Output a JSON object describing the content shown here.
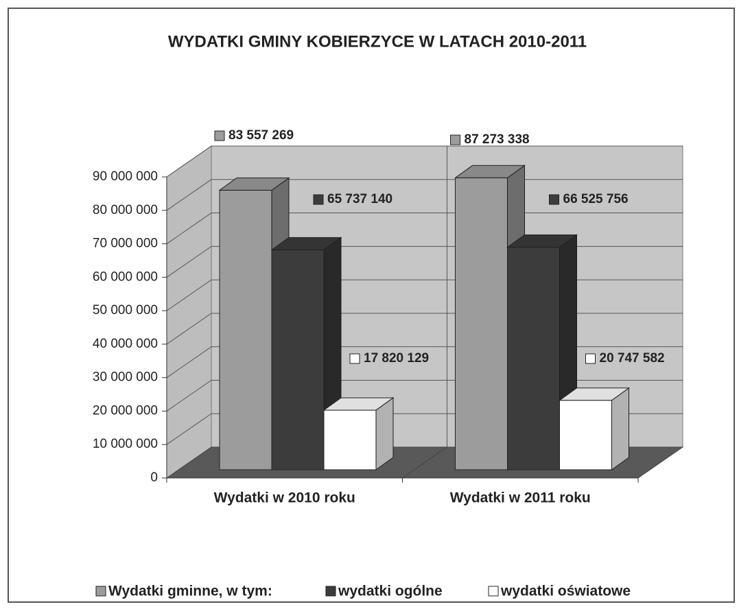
{
  "chart_data": {
    "type": "bar3d",
    "title": "WYDATKI GMINY KOBIERZYCE W LATACH 2010-2011",
    "categories": [
      "Wydatki w 2010 roku",
      "Wydatki w 2011 roku"
    ],
    "series": [
      {
        "name": "Wydatki gminne, w tym:",
        "color": "#9c9c9c",
        "values": [
          83557269,
          87273338
        ],
        "value_labels": [
          "83 557 269",
          "87 273 338"
        ]
      },
      {
        "name": "wydatki ogólne",
        "color": "#3c3c3c",
        "values": [
          65737140,
          66525756
        ],
        "value_labels": [
          "65 737 140",
          "66 525 756"
        ]
      },
      {
        "name": "wydatki oświatowe",
        "color": "#ffffff",
        "values": [
          17820129,
          20747582
        ],
        "value_labels": [
          "17 820 129",
          "20 747 582"
        ]
      }
    ],
    "ylim": [
      0,
      90000000
    ],
    "yticks": [
      {
        "value": 0,
        "label": "0"
      },
      {
        "value": 10000000,
        "label": "10 000 000"
      },
      {
        "value": 20000000,
        "label": "20 000 000"
      },
      {
        "value": 30000000,
        "label": "30 000 000"
      },
      {
        "value": 40000000,
        "label": "40 000 000"
      },
      {
        "value": 50000000,
        "label": "50 000 000"
      },
      {
        "value": 60000000,
        "label": "60 000 000"
      },
      {
        "value": 70000000,
        "label": "70 000 000"
      },
      {
        "value": 80000000,
        "label": "80 000 000"
      },
      {
        "value": 90000000,
        "label": "90 000 000"
      }
    ],
    "grid": true,
    "legend": "bottom"
  }
}
